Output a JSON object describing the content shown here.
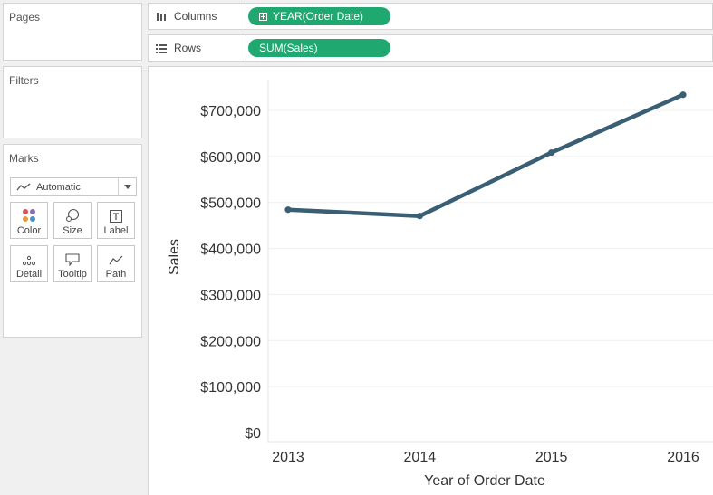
{
  "panels": {
    "pages": "Pages",
    "filters": "Filters",
    "marks": "Marks"
  },
  "marks": {
    "type": "Automatic",
    "type_icon": "line-chart-icon",
    "buttons": [
      {
        "label": "Color",
        "icon": "color-dots-icon"
      },
      {
        "label": "Size",
        "icon": "size-circles-icon"
      },
      {
        "label": "Label",
        "icon": "label-t-icon"
      },
      {
        "label": "Detail",
        "icon": "detail-dots-icon"
      },
      {
        "label": "Tooltip",
        "icon": "tooltip-bubble-icon"
      },
      {
        "label": "Path",
        "icon": "path-line-icon"
      }
    ]
  },
  "shelves": {
    "columns": {
      "label": "Columns",
      "icon": "columns-icon",
      "pill": "YEAR(Order Date)"
    },
    "rows": {
      "label": "Rows",
      "icon": "rows-icon",
      "pill": "SUM(Sales)"
    }
  },
  "colors": {
    "pill": "#1fa86f",
    "line": "#3a5f75"
  },
  "chart_data": {
    "type": "line",
    "categories": [
      "2013",
      "2014",
      "2015",
      "2016"
    ],
    "values": [
      484247,
      470533,
      608474,
      733947
    ],
    "xlabel": "Year of Order Date",
    "ylabel": "Sales",
    "ylim": [
      0,
      700000
    ],
    "yticks": [
      0,
      100000,
      200000,
      300000,
      400000,
      500000,
      600000,
      700000
    ],
    "ytick_labels": [
      "$0",
      "$100,000",
      "$200,000",
      "$300,000",
      "$400,000",
      "$500,000",
      "$600,000",
      "$700,000"
    ],
    "grid": true
  }
}
